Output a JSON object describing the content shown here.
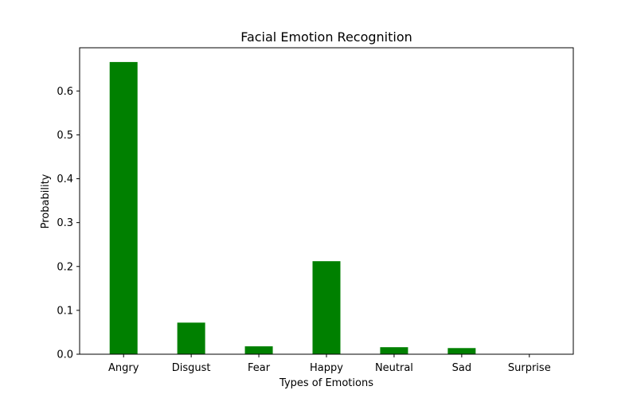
{
  "chart_data": {
    "type": "bar",
    "title": "Facial Emotion Recognition",
    "xlabel": "Types of Emotions",
    "ylabel": "Probability",
    "categories": [
      "Angry",
      "Disgust",
      "Fear",
      "Happy",
      "Neutral",
      "Sad",
      "Surprise"
    ],
    "values": [
      0.666,
      0.072,
      0.018,
      0.212,
      0.016,
      0.014,
      0.0
    ],
    "yticks": [
      "0.0",
      "0.1",
      "0.2",
      "0.3",
      "0.4",
      "0.5",
      "0.6"
    ],
    "ylim": [
      0,
      0.7
    ],
    "grid": false,
    "legend": "none",
    "bar_color": "#008000"
  }
}
